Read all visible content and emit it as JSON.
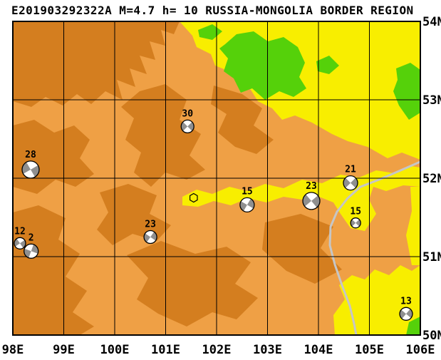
{
  "title": "E201903292322A M=4.7 h= 10 RUSSIA-MONGOLIA BORDER REGION",
  "map": {
    "lon_min": 98,
    "lon_max": 106,
    "lat_min": 50,
    "lat_max": 54,
    "lon_ticks": [
      {
        "lon": 98,
        "label": "98E"
      },
      {
        "lon": 99,
        "label": "99E"
      },
      {
        "lon": 100,
        "label": "100E"
      },
      {
        "lon": 101,
        "label": "101E"
      },
      {
        "lon": 102,
        "label": "102E"
      },
      {
        "lon": 103,
        "label": "103E"
      },
      {
        "lon": 104,
        "label": "104E"
      },
      {
        "lon": 105,
        "label": "105E"
      },
      {
        "lon": 106,
        "label": "106E"
      }
    ],
    "lat_ticks": [
      {
        "lat": 54,
        "label": "54N"
      },
      {
        "lat": 53,
        "label": "53N"
      },
      {
        "lat": 52,
        "label": "52N"
      },
      {
        "lat": 51,
        "label": "51N"
      },
      {
        "lat": 50,
        "label": "50N"
      }
    ]
  },
  "colors": {
    "land_orange": "#EFA045",
    "land_dark_orange": "#D47E1F",
    "land_yellow": "#F8EE00",
    "land_green": "#55D10A",
    "road_grey": "#C6C6C6",
    "beachball_grey": "#8F8F8F",
    "epicenter_yellow": "#F8EE00"
  },
  "events": [
    {
      "label": "30",
      "lon": 101.43,
      "lat": 52.66,
      "r": 9,
      "rot": -45
    },
    {
      "label": "28",
      "lon": 98.35,
      "lat": 52.11,
      "r": 12,
      "rot": -30
    },
    {
      "label": "21",
      "lon": 104.63,
      "lat": 51.94,
      "r": 10,
      "rot": -45
    },
    {
      "label": "15",
      "lon": 102.6,
      "lat": 51.66,
      "r": 10,
      "rot": -60
    },
    {
      "label": "23",
      "lon": 103.86,
      "lat": 51.71,
      "r": 12,
      "rot": -40
    },
    {
      "label": "15",
      "lon": 104.73,
      "lat": 51.43,
      "r": 7,
      "rot": -45
    },
    {
      "label": "23",
      "lon": 100.7,
      "lat": 51.25,
      "r": 9,
      "rot": -55
    },
    {
      "label": "12",
      "lon": 98.14,
      "lat": 51.17,
      "r": 8,
      "rot": -35
    },
    {
      "label": "2",
      "lon": 98.36,
      "lat": 51.07,
      "r": 10,
      "rot": -70
    },
    {
      "label": "13",
      "lon": 105.72,
      "lat": 50.27,
      "r": 9,
      "rot": -50
    }
  ],
  "epicenter": {
    "lon": 101.55,
    "lat": 51.75,
    "symbol": "hexagon"
  }
}
